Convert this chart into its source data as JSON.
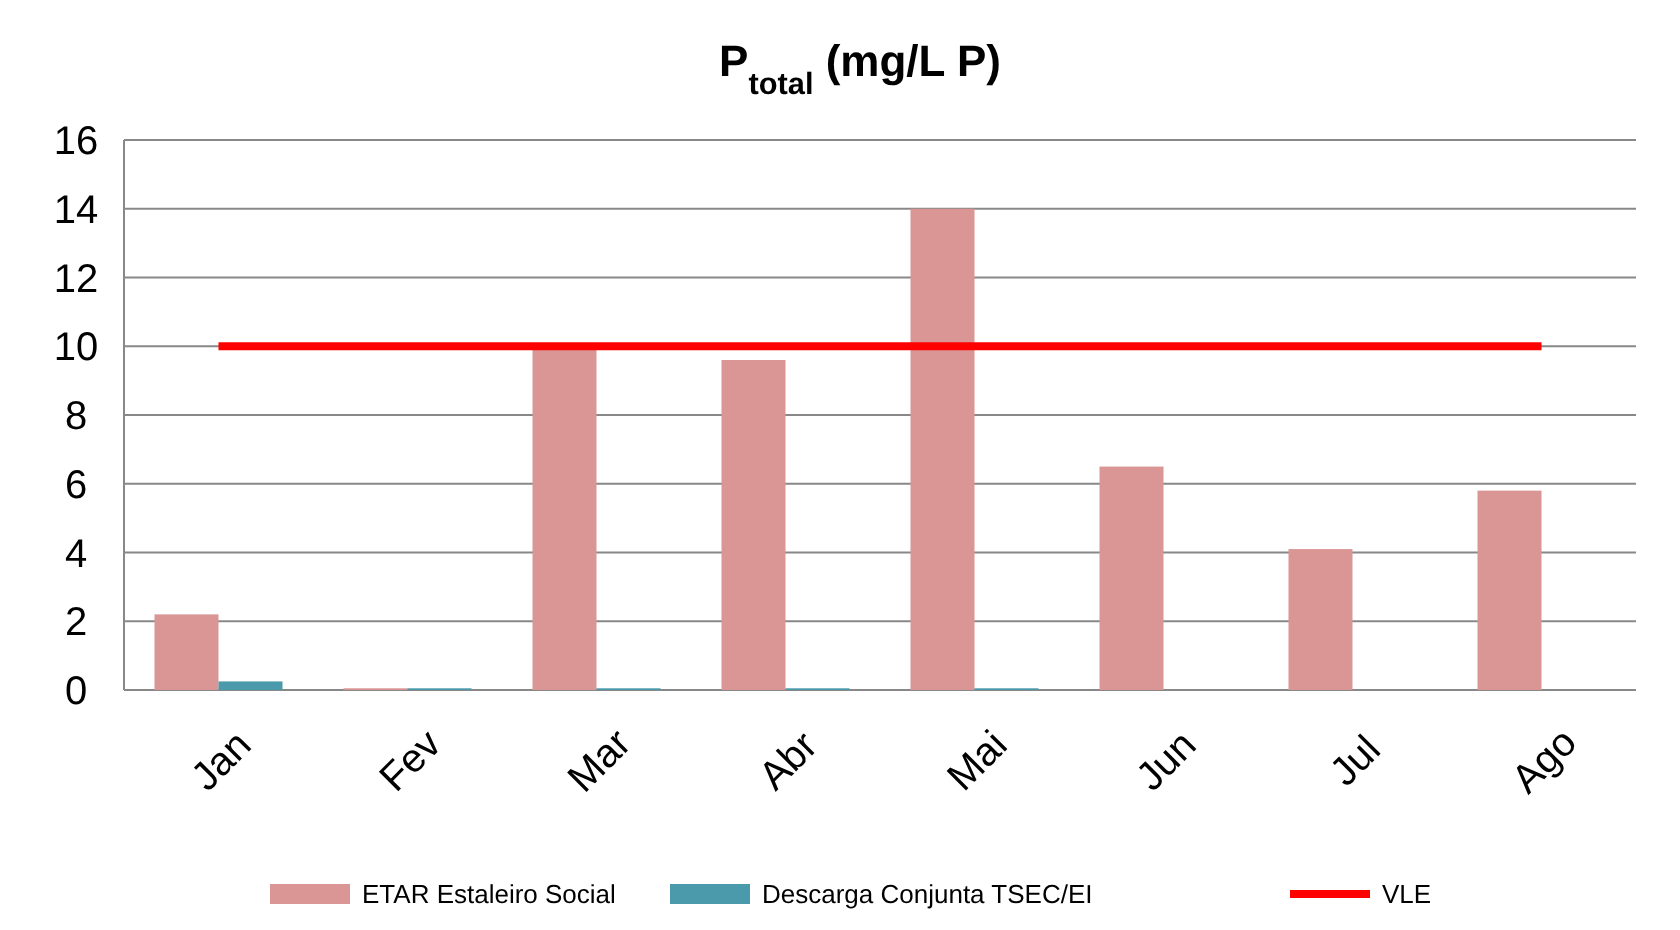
{
  "chart_data": {
    "type": "bar",
    "title": "P$_{total}$ (mg/L P)",
    "categories": [
      "Jan",
      "Fev",
      "Mar",
      "Abr",
      "Mai",
      "Jun",
      "Jul",
      "Ago"
    ],
    "series": [
      {
        "name": "ETAR Estaleiro Social",
        "color": "#d99694",
        "values": [
          2.2,
          0.05,
          9.9,
          9.6,
          14,
          6.5,
          4.1,
          5.8
        ]
      },
      {
        "name": "Descarga Conjunta TSEC/EI",
        "color": "#4a9aab",
        "values": [
          0.25,
          0.05,
          0.05,
          0.05,
          0.05,
          null,
          null,
          null
        ]
      },
      {
        "name": "VLE",
        "type": "line",
        "color": "#ff0000",
        "values": [
          10,
          10,
          10,
          10,
          10,
          10,
          10,
          10
        ]
      }
    ],
    "ylim": [
      0,
      16
    ],
    "yticks": [
      0,
      2,
      4,
      6,
      8,
      10,
      12,
      14,
      16
    ],
    "grid": "y",
    "legend": "bottom",
    "marker": "none",
    "line_style": "solid"
  }
}
